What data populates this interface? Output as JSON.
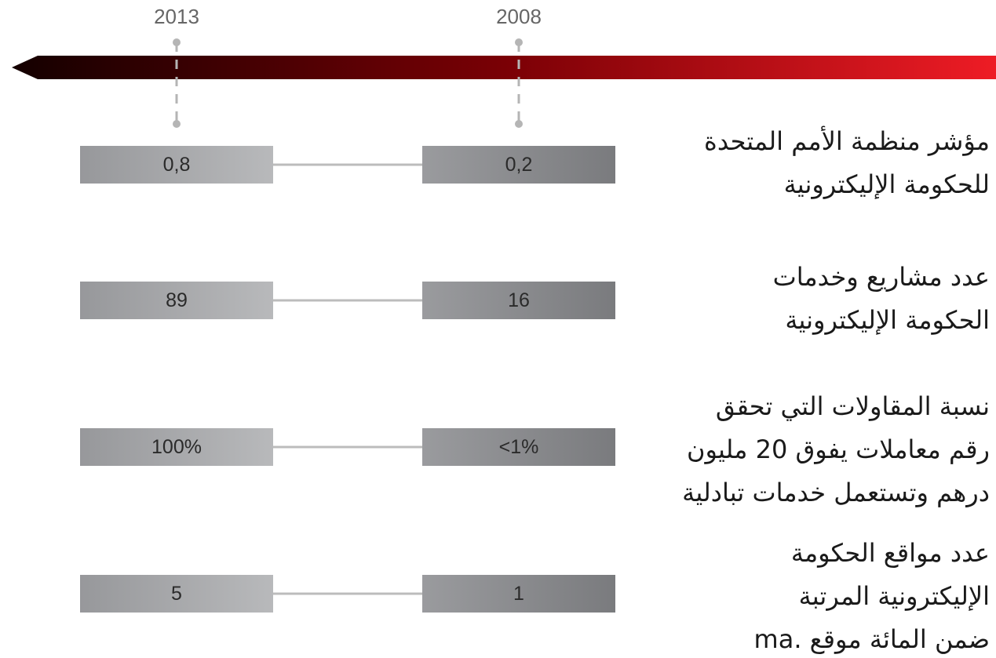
{
  "years": [
    "2013",
    "2008"
  ],
  "rows": [
    {
      "label": [
        "مؤشر منظمة الأمم المتحدة",
        "للحكومة الإليكترونية"
      ],
      "values": [
        "0,8",
        "0,2"
      ]
    },
    {
      "label": [
        "عدد مشاريع وخدمات",
        "الحكومة الإليكترونية"
      ],
      "values": [
        "89",
        "16"
      ]
    },
    {
      "label": [
        "نسبة المقاولات التي تحقق",
        "رقم معاملات يفوق 20 مليون",
        "درهم وتستعمل خدمات تبادلية"
      ],
      "values": [
        "100%",
        "<1%"
      ]
    },
    {
      "label": [
        "عدد مواقع الحكومة",
        "الإليكترونية المرتبة",
        "ضمن المائة موقع .ma"
      ],
      "values": [
        "5",
        "1"
      ]
    }
  ]
}
